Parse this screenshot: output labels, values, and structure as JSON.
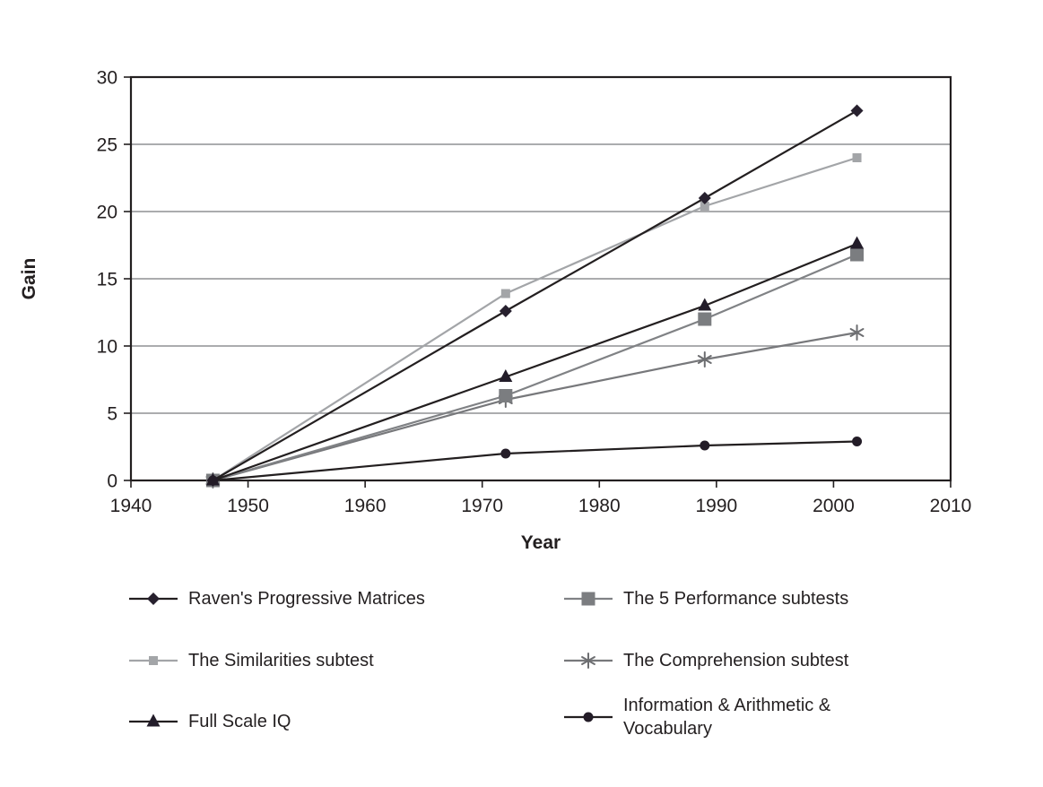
{
  "chart_data": {
    "type": "line",
    "title": "",
    "xlabel": "Year",
    "ylabel": "Gain",
    "xlim": [
      1940,
      2010
    ],
    "ylim": [
      0,
      30
    ],
    "xticks": [
      1940,
      1950,
      1960,
      1970,
      1980,
      1990,
      2000,
      2010
    ],
    "yticks": [
      0,
      5,
      10,
      15,
      20,
      25,
      30
    ],
    "grid": "horizontal",
    "legend_position": "bottom, two columns",
    "x": [
      1947,
      1972,
      1989,
      2002
    ],
    "series": [
      {
        "key": "ravens-progressive-matrices",
        "name": "Raven's Progressive Matrices",
        "marker": "diamond",
        "color": "#27202e",
        "line_color": "#231f20",
        "values": [
          0,
          12.6,
          21,
          27.5
        ]
      },
      {
        "key": "similarities-subtest",
        "name": "The Similarities subtest",
        "marker": "square-small",
        "color": "#a3a5a8",
        "line_color": "#a3a5a8",
        "values": [
          0,
          13.9,
          20.4,
          24
        ]
      },
      {
        "key": "full-scale-iq",
        "name": "Full Scale IQ",
        "marker": "triangle",
        "color": "#221c29",
        "line_color": "#231f20",
        "values": [
          0,
          7.7,
          13,
          17.6
        ]
      },
      {
        "key": "five-performance-subtests",
        "name": "The 5 Performance subtests",
        "marker": "square-large",
        "color": "#7b7d80",
        "line_color": "#808285",
        "values": [
          0,
          6.3,
          12,
          16.8
        ]
      },
      {
        "key": "comprehension-subtest",
        "name": "The Comprehension subtest",
        "marker": "asterisk",
        "color": "#6d6e71",
        "line_color": "#77787b",
        "values": [
          0,
          6,
          9,
          11
        ]
      },
      {
        "key": "information-arithmetic-vocabulary",
        "name": "Information & Arithmetic & Vocabulary",
        "name_lines": [
          "Information & Arithmetic &",
          "Vocabulary"
        ],
        "marker": "circle",
        "color": "#231c27",
        "line_color": "#231f20",
        "values": [
          0,
          2,
          2.6,
          2.9
        ]
      }
    ],
    "draw_order": [
      1,
      4,
      3,
      2,
      0,
      5
    ],
    "legend": {
      "left_indices": [
        0,
        1,
        2
      ],
      "right_indices": [
        3,
        4,
        5
      ]
    },
    "colors": {
      "axis": "#231f20",
      "grid": "#8f9194",
      "text": "#231f20",
      "background": "#ffffff"
    }
  }
}
